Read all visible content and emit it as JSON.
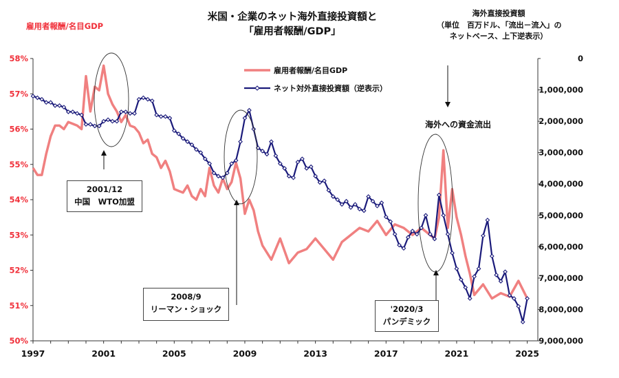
{
  "title_line1": "米国・企業のネット海外直接投資額と",
  "title_line2": "「雇用者報酬/GDP」",
  "left_axis_label": "雇用者報酬/名目GDP",
  "right_axis_title": [
    "海外直接投資額",
    "（単位　百万ドル、「流出－流入」の",
    "ネットベース、上下逆表示）"
  ],
  "outflow_label": "海外への資金流出",
  "annotations": {
    "wto": [
      "2001/12",
      "中国　WTO加盟"
    ],
    "lehman": [
      "2008/9",
      "リーマン・ショック"
    ],
    "pandemic": [
      "'2020/3",
      "パンデミック"
    ]
  },
  "chart_data": {
    "type": "line",
    "title": "米国・企業のネット海外直接投資額と「雇用者報酬/GDP」",
    "x_ticks": [
      "1997",
      "2001",
      "2005",
      "2009",
      "2013",
      "2017",
      "2021",
      "2025"
    ],
    "xlim": [
      1997,
      2025.6
    ],
    "left_axis": {
      "label": "雇用者報酬/名目GDP",
      "ylim": [
        50,
        58
      ],
      "ticks": [
        "50%",
        "51%",
        "52%",
        "53%",
        "54%",
        "55%",
        "56%",
        "57%",
        "58%"
      ]
    },
    "right_axis": {
      "label": "海外直接投資額（単位　百万ドル、「流出－流入」のネットベース、上下逆表示）",
      "ylim": [
        0,
        9000000
      ],
      "inverted": true,
      "ticks": [
        "0",
        "1,000,000",
        "2,000,000",
        "3,000,000",
        "4,000,000",
        "5,000,000",
        "6,000,000",
        "7,000,000",
        "8,000,000",
        "9,000,000"
      ]
    },
    "series": [
      {
        "name": "雇用者報酬/名目GDP",
        "axis": "left",
        "color": "#f08080",
        "x": [
          1997.0,
          1997.25,
          1997.5,
          1997.75,
          1998.0,
          1998.25,
          1998.5,
          1998.75,
          1999.0,
          1999.25,
          1999.5,
          1999.75,
          2000.0,
          2000.25,
          2000.5,
          2000.75,
          2001.0,
          2001.25,
          2001.5,
          2001.75,
          2002.0,
          2002.25,
          2002.5,
          2002.75,
          2003.0,
          2003.25,
          2003.5,
          2003.75,
          2004.0,
          2004.25,
          2004.5,
          2004.75,
          2005.0,
          2005.25,
          2005.5,
          2005.75,
          2006.0,
          2006.25,
          2006.5,
          2006.75,
          2007.0,
          2007.25,
          2007.5,
          2007.75,
          2008.0,
          2008.25,
          2008.5,
          2008.75,
          2009.0,
          2009.25,
          2009.5,
          2009.75,
          2010.0,
          2010.5,
          2011.0,
          2011.5,
          2012.0,
          2012.5,
          2013.0,
          2013.5,
          2014.0,
          2014.5,
          2015.0,
          2015.5,
          2016.0,
          2016.5,
          2017.0,
          2017.5,
          2018.0,
          2018.5,
          2019.0,
          2019.5,
          2019.75,
          2020.0,
          2020.25,
          2020.5,
          2020.75,
          2021.0,
          2021.25,
          2021.5,
          2021.75,
          2022.0,
          2022.5,
          2023.0,
          2023.5,
          2024.0,
          2024.5,
          2025.0
        ],
        "values": [
          54.9,
          54.7,
          54.7,
          55.3,
          55.8,
          56.1,
          56.1,
          56.0,
          56.2,
          56.15,
          56.1,
          56.0,
          57.5,
          56.5,
          57.2,
          57.1,
          57.8,
          57.0,
          56.7,
          56.5,
          56.2,
          56.4,
          56.1,
          56.05,
          55.9,
          55.6,
          55.7,
          55.3,
          55.2,
          54.9,
          55.1,
          54.8,
          54.3,
          54.25,
          54.2,
          54.4,
          54.1,
          54.0,
          54.3,
          54.1,
          54.9,
          54.4,
          54.2,
          54.6,
          54.3,
          54.5,
          55.05,
          54.6,
          53.6,
          54.0,
          53.7,
          53.1,
          52.7,
          52.3,
          52.9,
          52.2,
          52.5,
          52.6,
          52.9,
          52.6,
          52.3,
          52.8,
          53.0,
          53.2,
          53.1,
          53.4,
          53.0,
          53.3,
          53.2,
          53.0,
          53.2,
          53.0,
          52.9,
          53.5,
          55.4,
          53.2,
          54.3,
          53.5,
          53.0,
          52.4,
          51.9,
          51.3,
          51.6,
          51.2,
          51.35,
          51.25,
          51.7,
          51.2
        ]
      },
      {
        "name": "ネット対外直接投資額（逆表示）",
        "axis": "right",
        "color": "#1a1a7a",
        "x": [
          1997.0,
          1997.25,
          1997.5,
          1997.75,
          1998.0,
          1998.25,
          1998.5,
          1998.75,
          1999.0,
          1999.25,
          1999.5,
          1999.75,
          2000.0,
          2000.25,
          2000.5,
          2000.75,
          2001.0,
          2001.25,
          2001.5,
          2001.75,
          2002.0,
          2002.25,
          2002.5,
          2002.75,
          2003.0,
          2003.25,
          2003.5,
          2003.75,
          2004.0,
          2004.25,
          2004.5,
          2004.75,
          2005.0,
          2005.25,
          2005.5,
          2005.75,
          2006.0,
          2006.25,
          2006.5,
          2006.75,
          2007.0,
          2007.25,
          2007.5,
          2007.75,
          2008.0,
          2008.25,
          2008.5,
          2008.75,
          2009.0,
          2009.25,
          2009.5,
          2009.75,
          2010.0,
          2010.25,
          2010.5,
          2010.75,
          2011.0,
          2011.25,
          2011.5,
          2011.75,
          2012.0,
          2012.25,
          2012.5,
          2012.75,
          2013.0,
          2013.25,
          2013.5,
          2013.75,
          2014.0,
          2014.25,
          2014.5,
          2014.75,
          2015.0,
          2015.25,
          2015.5,
          2015.75,
          2016.0,
          2016.25,
          2016.5,
          2016.75,
          2017.0,
          2017.25,
          2017.5,
          2017.75,
          2018.0,
          2018.25,
          2018.5,
          2018.75,
          2019.0,
          2019.25,
          2019.5,
          2019.75,
          2020.0,
          2020.25,
          2020.5,
          2020.75,
          2021.0,
          2021.25,
          2021.5,
          2021.75,
          2022.0,
          2022.25,
          2022.5,
          2022.75,
          2023.0,
          2023.25,
          2023.5,
          2023.75,
          2024.0,
          2024.25,
          2024.5,
          2024.75,
          2025.0
        ],
        "values": [
          1200000,
          1250000,
          1300000,
          1400000,
          1400000,
          1500000,
          1500000,
          1550000,
          1700000,
          1700000,
          1750000,
          1800000,
          2100000,
          2100000,
          2150000,
          2150000,
          2000000,
          1950000,
          2000000,
          2000000,
          1700000,
          1700000,
          1750000,
          1750000,
          1300000,
          1250000,
          1300000,
          1350000,
          1800000,
          1850000,
          1850000,
          1900000,
          2300000,
          2400000,
          2550000,
          2650000,
          2750000,
          2900000,
          3000000,
          3200000,
          3350000,
          3650000,
          3750000,
          3800000,
          3650000,
          3350000,
          3250000,
          2650000,
          1900000,
          1650000,
          2250000,
          2850000,
          2950000,
          3050000,
          2650000,
          3100000,
          3350000,
          3500000,
          3750000,
          3800000,
          3300000,
          3200000,
          3500000,
          3450000,
          3750000,
          3950000,
          3900000,
          4200000,
          4400000,
          4500000,
          4650000,
          4550000,
          4750000,
          4650000,
          4800000,
          4850000,
          4400000,
          4550000,
          4700000,
          4600000,
          5050000,
          5200000,
          5600000,
          5950000,
          6050000,
          5700000,
          5500000,
          5600000,
          5400000,
          5000000,
          5600000,
          5750000,
          4350000,
          5000000,
          5600000,
          6200000,
          6700000,
          7050000,
          7300000,
          7650000,
          6950000,
          6700000,
          5650000,
          5150000,
          6300000,
          6900000,
          7100000,
          6800000,
          7550000,
          7650000,
          7900000,
          8400000,
          7650000
        ]
      }
    ]
  },
  "legend": {
    "series1": "雇用者報酬/名目GDP",
    "series2": "ネット対外直接投資額（逆表示）"
  },
  "colors": {
    "wage": "#f08080",
    "fdi": "#1a1a7a",
    "red_text": "#f0303a"
  }
}
